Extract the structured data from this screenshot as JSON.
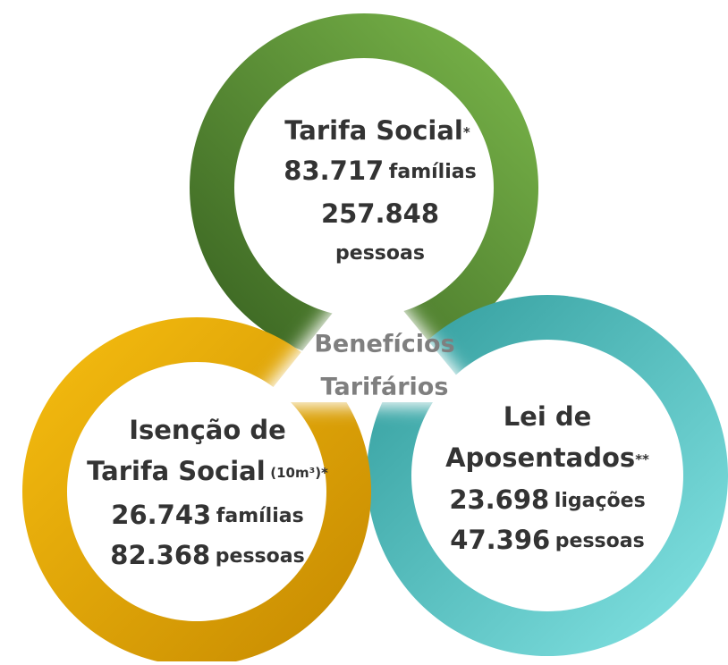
{
  "center": {
    "lines": [
      "Benefícios",
      "Tarifários"
    ]
  },
  "tarifa_social": {
    "title": "Tarifa Social",
    "mark": "*",
    "families": "83.717",
    "families_unit": "famílias",
    "people": "257.848",
    "people_unit": "pessoas"
  },
  "isencao": {
    "title_line1": "Isenção de",
    "title_line2": "Tarifa Social",
    "note": "(10m³)*",
    "families": "26.743",
    "families_unit": "famílias",
    "people": "82.368",
    "people_unit": "pessoas"
  },
  "aposentados": {
    "title_line1": "Lei de",
    "title_line2": "Aposentados",
    "mark": "**",
    "connections": "23.698",
    "connections_unit": "ligações",
    "people": "47.396",
    "people_unit": "pessoas"
  }
}
